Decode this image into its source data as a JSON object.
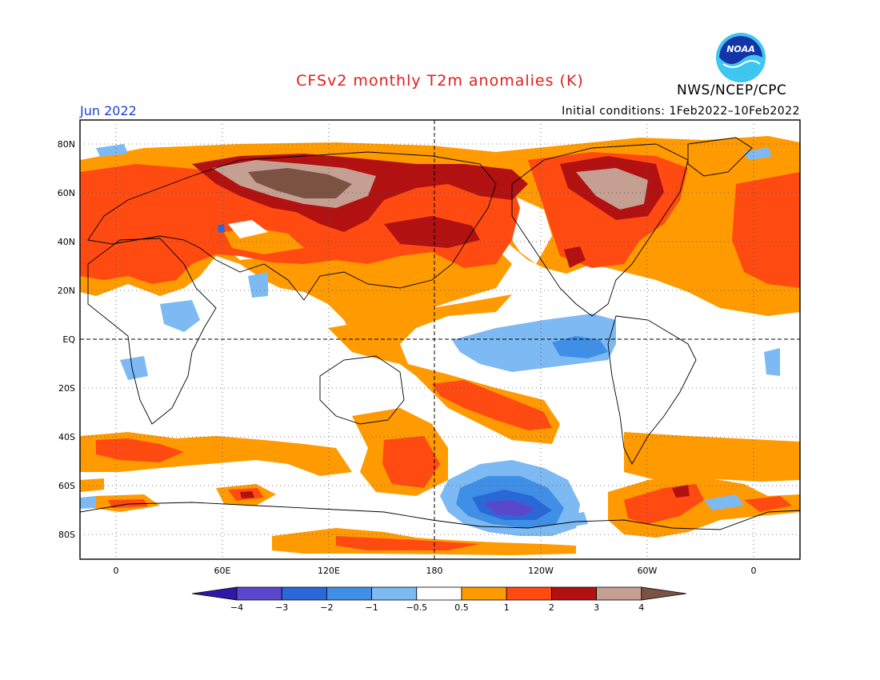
{
  "map": {
    "title": "CFSv2 monthly T2m anomalies (K)",
    "month": "Jun 2022",
    "initial_conditions": "Initial conditions: 1Feb2022–10Feb2022",
    "agency": "NWS/NCEP/CPC",
    "logo_text": "NOAA",
    "title_color": "#e0201b",
    "month_color": "#1f3fd6",
    "lat_labels": [
      "80N",
      "60N",
      "40N",
      "20N",
      "EQ",
      "20S",
      "40S",
      "60S",
      "80S"
    ],
    "lon_labels": [
      "0",
      "60E",
      "120E",
      "180",
      "120W",
      "60W",
      "0"
    ]
  },
  "legend": {
    "ticks": [
      "−4",
      "−3",
      "−2",
      "−1",
      "−0.5",
      "0.5",
      "1",
      "2",
      "3",
      "4"
    ],
    "colors": [
      "#2d18a8",
      "#5a47cc",
      "#2a68d8",
      "#3f8fe6",
      "#7db9f2",
      "#ffffff",
      "#ff9a00",
      "#ff4a12",
      "#b21111",
      "#c59f92",
      "#7c5243"
    ]
  }
}
